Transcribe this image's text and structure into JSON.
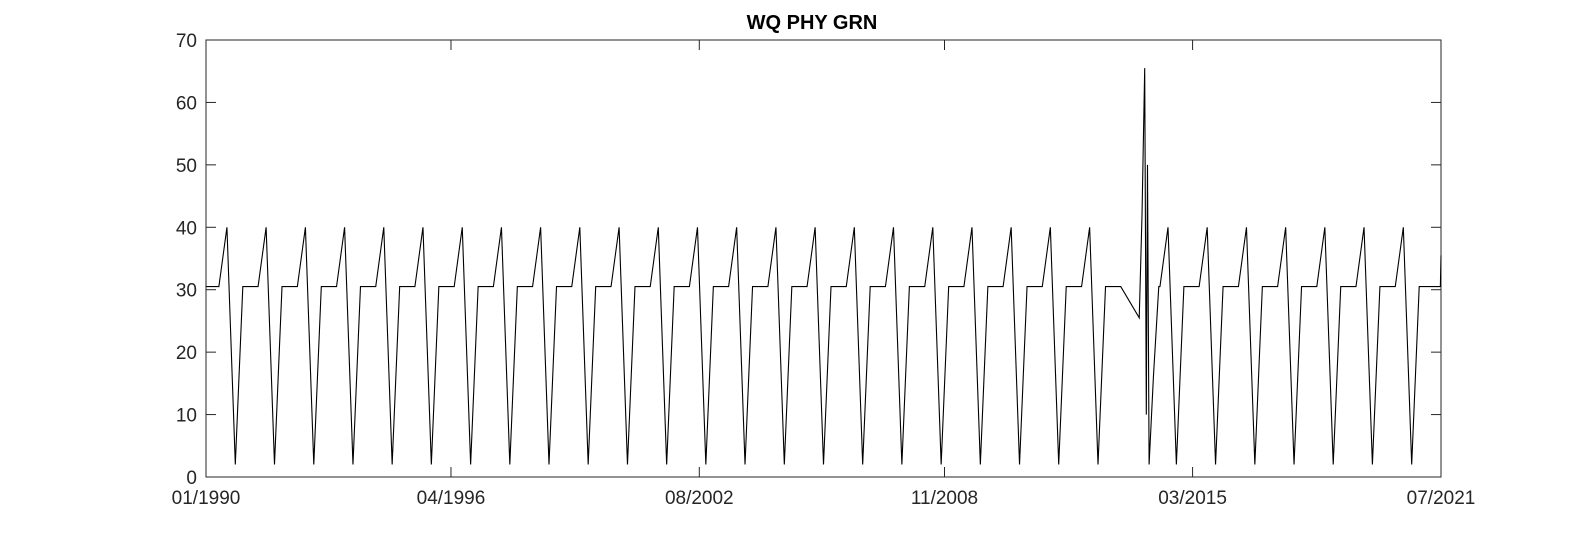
{
  "chart_data": {
    "type": "line",
    "title": "WQ PHY GRN",
    "xlabel": "",
    "ylabel": "",
    "xlim": [
      "1990-01",
      "2021-07"
    ],
    "ylim": [
      0,
      70
    ],
    "grid": false,
    "x_ticks": [
      "01/1990",
      "04/1996",
      "08/2002",
      "11/2008",
      "03/2015",
      "07/2021"
    ],
    "y_ticks": [
      "0",
      "10",
      "20",
      "30",
      "40",
      "50",
      "60",
      "70"
    ],
    "line_color": "#000000",
    "series": [
      {
        "values": [
          [
            "1990-01-01",
            30.5
          ],
          [
            "1990-05-01",
            30.5
          ],
          [
            "1990-07-15",
            40
          ],
          [
            "1990-10-01",
            2
          ],
          [
            "1990-12-10",
            30.5
          ],
          [
            "1991-05-01",
            30.5
          ],
          [
            "1991-07-15",
            40
          ],
          [
            "1991-10-01",
            2
          ],
          [
            "1991-12-10",
            30.5
          ],
          [
            "1992-05-01",
            30.5
          ],
          [
            "1992-07-15",
            40
          ],
          [
            "1992-10-01",
            2
          ],
          [
            "1992-12-10",
            30.5
          ],
          [
            "1993-05-01",
            30.5
          ],
          [
            "1993-07-15",
            40
          ],
          [
            "1993-10-01",
            2
          ],
          [
            "1993-12-10",
            30.5
          ],
          [
            "1994-05-01",
            30.5
          ],
          [
            "1994-07-15",
            40
          ],
          [
            "1994-10-01",
            2
          ],
          [
            "1994-12-10",
            30.5
          ],
          [
            "1995-05-01",
            30.5
          ],
          [
            "1995-07-15",
            40
          ],
          [
            "1995-10-01",
            2
          ],
          [
            "1995-12-10",
            30.5
          ],
          [
            "1996-05-01",
            30.5
          ],
          [
            "1996-07-15",
            40
          ],
          [
            "1996-10-01",
            2
          ],
          [
            "1996-12-10",
            30.5
          ],
          [
            "1997-05-01",
            30.5
          ],
          [
            "1997-07-15",
            40
          ],
          [
            "1997-10-01",
            2
          ],
          [
            "1997-12-10",
            30.5
          ],
          [
            "1998-05-01",
            30.5
          ],
          [
            "1998-07-15",
            40
          ],
          [
            "1998-10-01",
            2
          ],
          [
            "1998-12-10",
            30.5
          ],
          [
            "1999-05-01",
            30.5
          ],
          [
            "1999-07-15",
            40
          ],
          [
            "1999-10-01",
            2
          ],
          [
            "1999-12-10",
            30.5
          ],
          [
            "2000-05-01",
            30.5
          ],
          [
            "2000-07-15",
            40
          ],
          [
            "2000-10-01",
            2
          ],
          [
            "2000-12-10",
            30.5
          ],
          [
            "2001-05-01",
            30.5
          ],
          [
            "2001-07-15",
            40
          ],
          [
            "2001-10-01",
            2
          ],
          [
            "2001-12-10",
            30.5
          ],
          [
            "2002-05-01",
            30.5
          ],
          [
            "2002-07-15",
            40
          ],
          [
            "2002-10-01",
            2
          ],
          [
            "2002-12-10",
            30.5
          ],
          [
            "2003-05-01",
            30.5
          ],
          [
            "2003-07-15",
            40
          ],
          [
            "2003-10-01",
            2
          ],
          [
            "2003-12-10",
            30.5
          ],
          [
            "2004-05-01",
            30.5
          ],
          [
            "2004-07-15",
            40
          ],
          [
            "2004-10-01",
            2
          ],
          [
            "2004-12-10",
            30.5
          ],
          [
            "2005-05-01",
            30.5
          ],
          [
            "2005-07-15",
            40
          ],
          [
            "2005-10-01",
            2
          ],
          [
            "2005-12-10",
            30.5
          ],
          [
            "2006-05-01",
            30.5
          ],
          [
            "2006-07-15",
            40
          ],
          [
            "2006-10-01",
            2
          ],
          [
            "2006-12-10",
            30.5
          ],
          [
            "2007-05-01",
            30.5
          ],
          [
            "2007-07-15",
            40
          ],
          [
            "2007-10-01",
            2
          ],
          [
            "2007-12-10",
            30.5
          ],
          [
            "2008-05-01",
            30.5
          ],
          [
            "2008-07-15",
            40
          ],
          [
            "2008-10-01",
            2
          ],
          [
            "2008-12-10",
            30.5
          ],
          [
            "2009-05-01",
            30.5
          ],
          [
            "2009-07-15",
            40
          ],
          [
            "2009-10-01",
            2
          ],
          [
            "2009-12-10",
            30.5
          ],
          [
            "2010-05-01",
            30.5
          ],
          [
            "2010-07-15",
            40
          ],
          [
            "2010-10-01",
            2
          ],
          [
            "2010-12-10",
            30.5
          ],
          [
            "2011-05-01",
            30.5
          ],
          [
            "2011-07-15",
            40
          ],
          [
            "2011-10-01",
            2
          ],
          [
            "2011-12-10",
            30.5
          ],
          [
            "2012-05-01",
            30.5
          ],
          [
            "2012-07-15",
            40
          ],
          [
            "2012-10-01",
            2
          ],
          [
            "2012-12-10",
            30.5
          ],
          [
            "2013-05-01",
            30.5
          ],
          [
            "2013-10-20",
            25.5
          ],
          [
            "2013-11-15",
            42
          ],
          [
            "2013-12-10",
            65.5
          ],
          [
            "2013-12-25",
            10
          ],
          [
            "2014-01-05",
            50
          ],
          [
            "2014-01-20",
            2
          ],
          [
            "2014-03-01",
            16
          ],
          [
            "2014-04-20",
            30.5
          ],
          [
            "2014-05-01",
            30.5
          ],
          [
            "2014-07-15",
            40
          ],
          [
            "2014-10-01",
            2
          ],
          [
            "2014-12-10",
            30.5
          ],
          [
            "2015-05-01",
            30.5
          ],
          [
            "2015-07-15",
            40
          ],
          [
            "2015-10-01",
            2
          ],
          [
            "2015-12-10",
            30.5
          ],
          [
            "2016-05-01",
            30.5
          ],
          [
            "2016-07-15",
            40
          ],
          [
            "2016-10-01",
            2
          ],
          [
            "2016-12-10",
            30.5
          ],
          [
            "2017-05-01",
            30.5
          ],
          [
            "2017-07-15",
            40
          ],
          [
            "2017-10-01",
            2
          ],
          [
            "2017-12-10",
            30.5
          ],
          [
            "2018-05-01",
            30.5
          ],
          [
            "2018-07-15",
            40
          ],
          [
            "2018-10-01",
            2
          ],
          [
            "2018-12-10",
            30.5
          ],
          [
            "2019-05-01",
            30.5
          ],
          [
            "2019-07-15",
            40
          ],
          [
            "2019-10-01",
            2
          ],
          [
            "2019-12-10",
            30.5
          ],
          [
            "2020-05-01",
            30.5
          ],
          [
            "2020-07-15",
            40
          ],
          [
            "2020-10-01",
            2
          ],
          [
            "2020-12-10",
            30.5
          ],
          [
            "2021-05-01",
            30.5
          ],
          [
            "2021-06-25",
            30.5
          ],
          [
            "2021-07-01",
            35.5
          ]
        ]
      }
    ]
  }
}
